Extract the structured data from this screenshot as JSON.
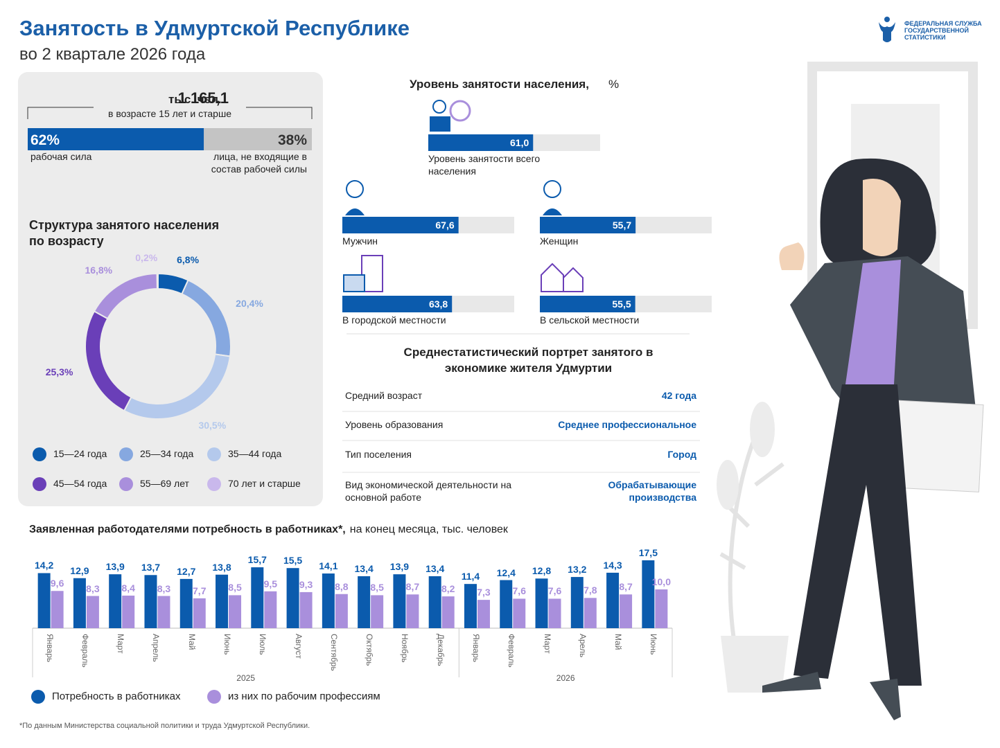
{
  "header": {
    "title": "Занятость в Удмуртской Республике",
    "subtitle": "во 2 квартале 2026 года",
    "logo_lines": [
      "ФЕДЕРАЛЬНАЯ СЛУЖБА",
      "ГОСУДАРСТВЕННОЙ",
      "СТАТИСТИКИ"
    ]
  },
  "chart_data": [
    {
      "type": "stacked-bar",
      "total": "1 165,1",
      "total_unit": "тыс. чел.",
      "subtitle": "в возрасте 15 лет и старше",
      "categories": [
        "рабочая сила",
        "лица, не входящие в состав рабочей силы"
      ],
      "values": [
        62,
        38
      ],
      "value_labels": [
        "62%",
        "38%"
      ],
      "colors": [
        "#0b5bad",
        "#c4c4c4"
      ]
    },
    {
      "type": "pie",
      "title": "Структура занятого населения по возрасту",
      "categories": [
        "15—24 года",
        "25—34 года",
        "35—44 года",
        "45—54 года",
        "55—69 лет",
        "70 лет и старше"
      ],
      "values": [
        6.8,
        20.4,
        30.5,
        25.3,
        16.8,
        0.2
      ],
      "value_labels": [
        "6,8%",
        "20,4%",
        "30,5%",
        "25,3%",
        "16,8%",
        "0,2%"
      ],
      "colors": [
        "#0b5bad",
        "#86a8e0",
        "#b4c9ec",
        "#6a3fb8",
        "#a98fdc",
        "#c9b8ec"
      ]
    },
    {
      "type": "hbar",
      "title": "Уровень занятости населения,",
      "title_unit": "%",
      "categories": [
        "Уровень занятости всего населения",
        "Мужчин",
        "Женщин",
        "В городской местности",
        "В сельской местности"
      ],
      "values": [
        61.0,
        67.6,
        55.7,
        63.8,
        55.5
      ],
      "value_labels": [
        "61,0",
        "67,6",
        "55,7",
        "63,8",
        "55,5"
      ],
      "xlim": [
        0,
        100
      ],
      "color": "#0b5bad",
      "track_color": "#e8e8e8"
    },
    {
      "type": "grouped-bar",
      "title": "Заявленная работодателями потребность в работниках*,",
      "subtitle": "на конец месяца, тыс. человек",
      "groups": [
        {
          "name": "2025",
          "categories": [
            "Январь",
            "Февраль",
            "Март",
            "Апрель",
            "Май",
            "Июнь",
            "Июль",
            "Август",
            "Сентябрь",
            "Октябрь",
            "Ноябрь",
            "Декабрь"
          ]
        },
        {
          "name": "2026",
          "categories": [
            "Январь",
            "Февраль",
            "Март",
            "Арель",
            "Май",
            "Июнь"
          ]
        }
      ],
      "series": [
        {
          "name": "Потребность в работниках",
          "color": "#0b5bad",
          "values": [
            14.2,
            12.9,
            13.9,
            13.7,
            12.7,
            13.8,
            15.7,
            15.5,
            14.1,
            13.4,
            13.9,
            13.4,
            11.4,
            12.4,
            12.8,
            13.2,
            14.3,
            17.5
          ],
          "value_labels": [
            "14,2",
            "12,9",
            "13,9",
            "13,7",
            "12,7",
            "13,8",
            "15,7",
            "15,5",
            "14,1",
            "13,4",
            "13,9",
            "13,4",
            "11,4",
            "12,4",
            "12,8",
            "13,2",
            "14,3",
            "17,5"
          ]
        },
        {
          "name": "из них по рабочим профессиям",
          "color": "#a98fdc",
          "values": [
            9.6,
            8.3,
            8.4,
            8.3,
            7.7,
            8.5,
            9.5,
            9.3,
            8.8,
            8.5,
            8.7,
            8.2,
            7.3,
            7.6,
            7.6,
            7.8,
            8.7,
            10.0
          ],
          "value_labels": [
            "9,6",
            "8,3",
            "8,4",
            "8,3",
            "7,7",
            "8,5",
            "9,5",
            "9,3",
            "8,8",
            "8,5",
            "8,7",
            "8,2",
            "7,3",
            "7,6",
            "7,6",
            "7,8",
            "8,7",
            "10,0"
          ]
        }
      ]
    }
  ],
  "portrait": {
    "title": "Среднестатистический портрет занятого в экономике жителя Удмуртии",
    "rows": [
      [
        "Средний возраст",
        "42 года"
      ],
      [
        "Уровень образования",
        "Среднее профессиональное"
      ],
      [
        "Тип поселения",
        "Город"
      ],
      [
        "Вид экономической деятельности на основной работе",
        "Обрабатывающие производства"
      ]
    ]
  },
  "footnote": "*По данным Министерства социальной политики и труда Удмуртской Республики."
}
